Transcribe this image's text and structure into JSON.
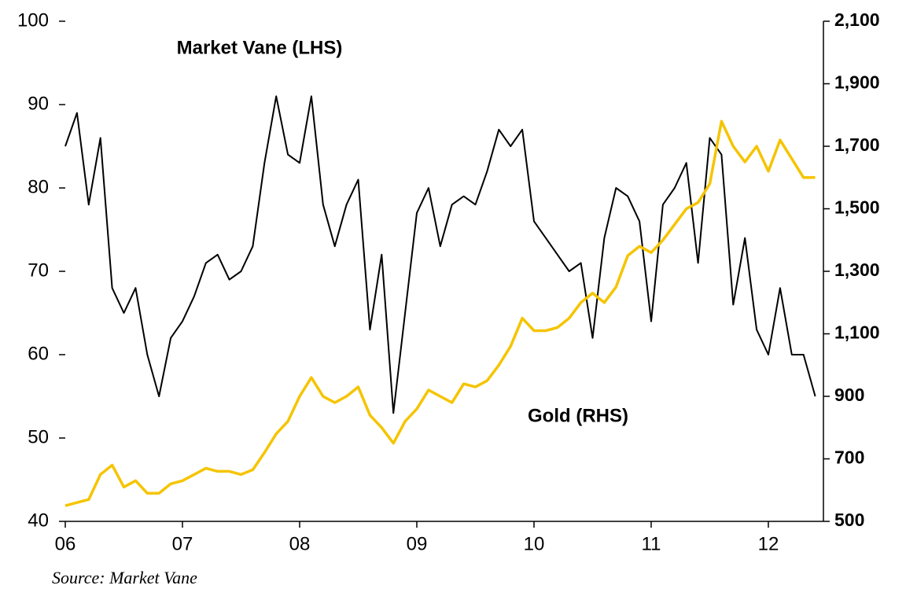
{
  "chart_data": {
    "type": "line",
    "source": "Source: Market Vane",
    "x": [
      2006.0,
      2006.1,
      2006.2,
      2006.3,
      2006.4,
      2006.5,
      2006.6,
      2006.7,
      2006.8,
      2006.9,
      2007.0,
      2007.1,
      2007.2,
      2007.3,
      2007.4,
      2007.5,
      2007.6,
      2007.7,
      2007.8,
      2007.9,
      2008.0,
      2008.1,
      2008.2,
      2008.3,
      2008.4,
      2008.5,
      2008.6,
      2008.7,
      2008.8,
      2008.9,
      2009.0,
      2009.1,
      2009.2,
      2009.3,
      2009.4,
      2009.5,
      2009.6,
      2009.7,
      2009.8,
      2009.9,
      2010.0,
      2010.1,
      2010.2,
      2010.3,
      2010.4,
      2010.5,
      2010.6,
      2010.7,
      2010.8,
      2010.9,
      2011.0,
      2011.1,
      2011.2,
      2011.3,
      2011.4,
      2011.5,
      2011.6,
      2011.7,
      2011.8,
      2011.9,
      2012.0,
      2012.1,
      2012.2,
      2012.3,
      2012.4
    ],
    "series": [
      {
        "name": "Market Vane (LHS)",
        "color": "#000000",
        "axis": "y",
        "values": [
          85,
          89,
          78,
          86,
          68,
          65,
          68,
          60,
          55,
          62,
          64,
          67,
          71,
          72,
          69,
          70,
          73,
          83,
          91,
          84,
          83,
          91,
          78,
          73,
          78,
          81,
          63,
          72,
          53,
          65,
          77,
          80,
          73,
          78,
          79,
          78,
          82,
          87,
          85,
          87,
          76,
          74,
          72,
          70,
          71,
          62,
          74,
          80,
          79,
          76,
          64,
          78,
          80,
          83,
          71,
          86,
          84,
          66,
          74,
          63,
          60,
          68,
          60,
          60,
          55
        ]
      },
      {
        "name": "Gold (RHS)",
        "color": "#f5c400",
        "axis": "y2",
        "values": [
          550,
          560,
          570,
          650,
          680,
          610,
          630,
          590,
          590,
          620,
          630,
          650,
          670,
          660,
          660,
          650,
          665,
          720,
          780,
          820,
          900,
          960,
          900,
          880,
          900,
          930,
          840,
          800,
          750,
          820,
          860,
          920,
          900,
          880,
          940,
          930,
          950,
          1000,
          1060,
          1150,
          1110,
          1110,
          1120,
          1150,
          1200,
          1230,
          1200,
          1250,
          1350,
          1380,
          1360,
          1400,
          1450,
          1500,
          1520,
          1580,
          1780,
          1700,
          1650,
          1700,
          1620,
          1720,
          1660,
          1600,
          1600
        ]
      }
    ],
    "xlim": [
      2006,
      2012.47
    ],
    "xticks": [
      {
        "value": 2006,
        "label": "06"
      },
      {
        "value": 2007,
        "label": "07"
      },
      {
        "value": 2008,
        "label": "08"
      },
      {
        "value": 2009,
        "label": "09"
      },
      {
        "value": 2010,
        "label": "10"
      },
      {
        "value": 2011,
        "label": "11"
      },
      {
        "value": 2012,
        "label": "12"
      }
    ],
    "ylim": [
      40,
      100
    ],
    "yticks": [
      40,
      50,
      60,
      70,
      80,
      90,
      100
    ],
    "y2lim": [
      500,
      2100
    ],
    "y2ticks": [
      500,
      700,
      900,
      {
        "value": 1100,
        "label": "1,100"
      },
      {
        "value": 1300,
        "label": "1,300"
      },
      {
        "value": 1500,
        "label": "1,500"
      },
      {
        "value": 1700,
        "label": "1,700"
      },
      {
        "value": 1900,
        "label": "1,900"
      },
      {
        "value": 2100,
        "label": "2,100"
      }
    ]
  }
}
